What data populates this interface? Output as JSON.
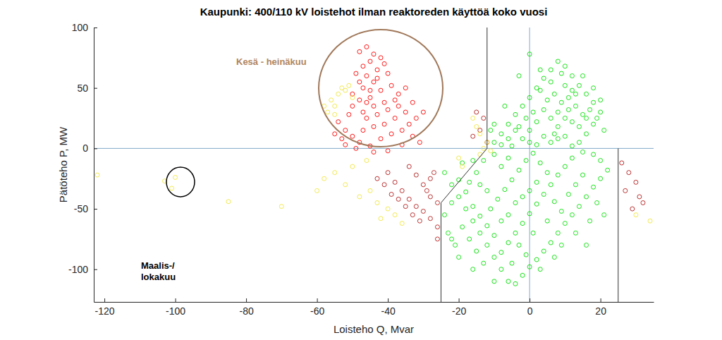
{
  "chart_data": {
    "type": "scatter",
    "title": "Kaupunki: 400/110 kV loistehot ilman reaktoreden käyttöä koko vuosi",
    "x_label": "Loisteho Q, Mvar",
    "y_label": "Pätöteho P, MW",
    "xlim": [
      -123,
      35
    ],
    "ylim": [
      -127,
      100
    ],
    "xticks": [
      -120,
      -100,
      -80,
      -60,
      -40,
      -20,
      0,
      20
    ],
    "yticks": [
      -100,
      -50,
      0,
      50,
      100
    ],
    "grid": false,
    "marker": "circle-open",
    "annotations": [
      {
        "text": [
          "Kesä - heinäkuu"
        ],
        "color": "#b08560"
      },
      {
        "text": [
          "Maalis-/",
          "lokakuu"
        ],
        "color": "#000000"
      }
    ],
    "reference_lines": [
      {
        "x": 0
      },
      {
        "y": 0
      }
    ],
    "boundaries": [
      {
        "x": [
          -25,
          -25,
          -12,
          -12
        ],
        "y": [
          -127,
          -45,
          0,
          100
        ]
      },
      {
        "x": [
          25,
          25
        ],
        "y": [
          -127,
          0
        ]
      }
    ],
    "series": [
      {
        "color": "#00e000",
        "x": [
          -10,
          -8,
          -6,
          -4,
          -2,
          0,
          2,
          4,
          6,
          8,
          10,
          12,
          14,
          16,
          18,
          20,
          18,
          16,
          14,
          12,
          10,
          8,
          6,
          4,
          2,
          0,
          -2,
          -4,
          -6,
          -8,
          5,
          7,
          9,
          11,
          13,
          15,
          17,
          19,
          12,
          10,
          6,
          3,
          1,
          -1,
          -3,
          8,
          10,
          12,
          14,
          16,
          4,
          6,
          8,
          2,
          0,
          -5,
          11,
          13,
          9,
          -11,
          -10,
          -7,
          0,
          -3,
          15,
          18,
          20,
          21,
          7,
          3,
          -24,
          -22,
          -20,
          -18,
          -16,
          -14,
          -12,
          -10,
          -8,
          -6,
          -4,
          -2,
          0,
          2,
          4,
          6,
          8,
          10,
          12,
          14,
          16,
          18,
          20,
          22,
          20,
          18,
          15,
          12,
          10,
          8,
          6,
          4,
          2,
          0,
          -2,
          -4,
          -6,
          -8,
          -10,
          -12,
          -14,
          -16,
          -18,
          -20,
          -22,
          -24,
          -23,
          -21,
          -19,
          -17,
          -15,
          -13,
          -11,
          -9,
          -7,
          -5,
          -3,
          -1,
          1,
          3,
          5,
          7,
          9,
          11,
          13,
          15,
          17,
          19,
          21,
          -13,
          -15,
          -17,
          -19,
          -10,
          -6,
          -8,
          -4,
          -2,
          0,
          2,
          -6,
          -8,
          -3,
          1,
          5,
          -1,
          3,
          -5,
          7,
          9,
          -10,
          -16,
          -20,
          -22,
          13,
          16,
          -12,
          -14,
          -16
        ],
        "values": [
          5,
          12,
          20,
          28,
          35,
          42,
          50,
          58,
          65,
          72,
          68,
          60,
          52,
          45,
          38,
          30,
          20,
          12,
          5,
          2,
          10,
          18,
          25,
          32,
          22,
          15,
          8,
          15,
          8,
          3,
          40,
          45,
          38,
          42,
          35,
          28,
          32,
          25,
          48,
          52,
          55,
          48,
          30,
          25,
          18,
          30,
          25,
          22,
          18,
          25,
          10,
          5,
          8,
          3,
          5,
          2,
          32,
          45,
          62,
          15,
          20,
          35,
          78,
          60,
          60,
          50,
          40,
          15,
          12,
          65,
          -20,
          -30,
          -40,
          -50,
          -60,
          -70,
          -80,
          -90,
          -100,
          -110,
          -112,
          -105,
          -98,
          -92,
          -85,
          -78,
          -70,
          -62,
          -55,
          -48,
          -40,
          -32,
          -25,
          -18,
          -10,
          -5,
          -3,
          -8,
          -15,
          -22,
          -30,
          -38,
          -46,
          -54,
          -62,
          -70,
          -78,
          -86,
          -72,
          -64,
          -56,
          -48,
          -36,
          -26,
          -45,
          -55,
          -70,
          -80,
          -65,
          -75,
          -85,
          -95,
          -50,
          -42,
          -34,
          -26,
          -18,
          -10,
          -4,
          -12,
          -20,
          -44,
          -52,
          -38,
          -30,
          -22,
          -60,
          -45,
          -55,
          -10,
          -20,
          -28,
          -12,
          -5,
          -8,
          -15,
          -45,
          -40,
          -35,
          -28,
          -55,
          -60,
          -80,
          -70,
          -60,
          -88,
          -100,
          -95,
          -90,
          -80,
          -110,
          -100,
          -90,
          -75,
          -70,
          -80,
          -35,
          -30,
          -10
        ]
      },
      {
        "color": "#ff0000",
        "x": [
          -48,
          -46,
          -44,
          -45,
          -47,
          -49,
          -46,
          -43,
          -41,
          -40,
          -44,
          -47,
          -50,
          -48,
          -45,
          -42,
          -39,
          -37,
          -41,
          -44,
          -47,
          -51,
          -54,
          -52,
          -50,
          -48,
          -45,
          -42,
          -39,
          -36,
          -34,
          -32,
          -35,
          -38,
          -41,
          -44,
          -47,
          -53,
          -55,
          -46,
          -43,
          -40,
          -37,
          -33,
          -31,
          -36,
          -40,
          -44,
          -49,
          -52,
          -45,
          -43,
          -48,
          -46,
          -50,
          -38,
          -35,
          -33,
          -30,
          -42
        ],
        "values": [
          80,
          84,
          78,
          72,
          68,
          62,
          60,
          65,
          70,
          62,
          55,
          50,
          45,
          40,
          42,
          48,
          52,
          45,
          38,
          35,
          30,
          28,
          22,
          15,
          10,
          5,
          2,
          8,
          12,
          15,
          20,
          25,
          30,
          25,
          20,
          18,
          15,
          8,
          12,
          25,
          28,
          32,
          35,
          10,
          5,
          3,
          -2,
          -3,
          0,
          3,
          48,
          58,
          55,
          38,
          35,
          40,
          50,
          38,
          30,
          75
        ]
      },
      {
        "color": "#b41e1e",
        "x": [
          -40,
          -38,
          -36,
          -34,
          -32,
          -30,
          -28,
          -26,
          -26,
          -28,
          -30,
          -32,
          -34,
          -27,
          -29,
          -31,
          -33,
          -35,
          -37,
          -39,
          -41,
          -43,
          -26,
          -28,
          -14,
          -13,
          -15,
          -16,
          -12,
          26,
          28,
          30,
          27,
          32,
          29,
          31
        ],
        "values": [
          -20,
          -28,
          -35,
          -42,
          -48,
          -52,
          -58,
          -65,
          -75,
          -40,
          -30,
          -22,
          -15,
          -20,
          -35,
          -60,
          -55,
          -48,
          -42,
          -38,
          -30,
          -25,
          -45,
          -25,
          15,
          25,
          30,
          10,
          5,
          -12,
          -20,
          -28,
          -35,
          -45,
          -50,
          -40
        ]
      },
      {
        "color": "#f0e640",
        "x": [
          -56,
          -55,
          -54,
          -53,
          -52,
          -51,
          -50,
          -57,
          -55,
          -58,
          -103,
          -101,
          -100,
          -122,
          -85,
          -70,
          -60,
          -58,
          -55,
          -52,
          -50,
          -48,
          -45,
          -46,
          -43,
          -40,
          -38,
          -42,
          -36,
          -14,
          -13,
          -12,
          -15,
          -16,
          -14,
          -11,
          -19,
          -20,
          30,
          34
        ],
        "values": [
          40,
          35,
          45,
          50,
          48,
          52,
          42,
          30,
          28,
          35,
          -27,
          -33,
          -24,
          -22,
          -44,
          -48,
          -35,
          -25,
          -20,
          -30,
          -15,
          -40,
          -35,
          -10,
          -45,
          -50,
          -55,
          -58,
          -62,
          -5,
          0,
          5,
          18,
          25,
          12,
          -2,
          -15,
          -8,
          -55,
          -60
        ]
      }
    ]
  }
}
